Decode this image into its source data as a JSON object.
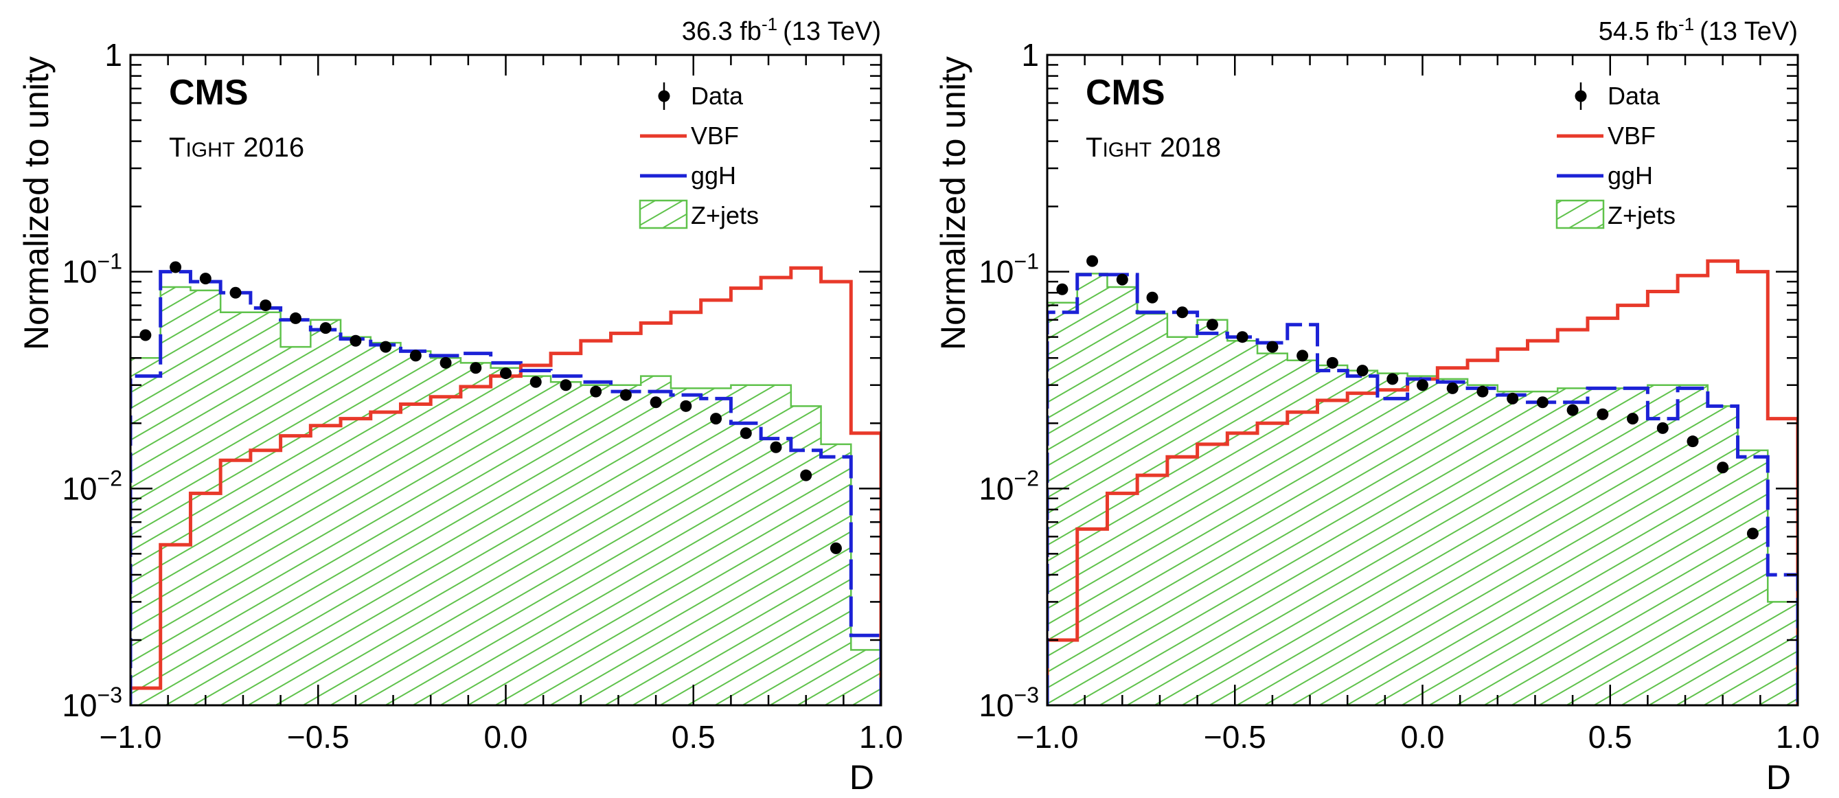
{
  "colors": {
    "vbf": "#e8392a",
    "ggh": "#1c22d6",
    "zjets": "#5fc24b",
    "data": "#000000"
  },
  "chart_data": [
    {
      "type": "histogram",
      "lumi_value": "36.3 fb",
      "lumi_exp": "-1",
      "energy": "(13 TeV)",
      "cms_label": "CMS",
      "category_cap": "T",
      "category_small": "IGHT",
      "category_year": "2016",
      "xlabel": "D",
      "ylabel": "Normalized to unity",
      "xlim": [
        -1.0,
        1.0
      ],
      "ylim": [
        0.001,
        1
      ],
      "yscale": "log",
      "xticks": [
        "−1.0",
        "−0.5",
        "0.0",
        "0.5",
        "1.0"
      ],
      "yticks": [
        {
          "base": "1",
          "exp": ""
        },
        {
          "base": "10",
          "exp": "−1"
        },
        {
          "base": "10",
          "exp": "−2"
        },
        {
          "base": "10",
          "exp": "−3"
        }
      ],
      "legend": [
        "Data",
        "VBF",
        "ggH",
        "Z+jets"
      ],
      "bin_edges": [
        -1.0,
        -0.92,
        -0.84,
        -0.76,
        -0.68,
        -0.6,
        -0.52,
        -0.44,
        -0.36,
        -0.28,
        -0.2,
        -0.12,
        -0.04,
        0.04,
        0.12,
        0.2,
        0.28,
        0.36,
        0.44,
        0.52,
        0.6,
        0.68,
        0.76,
        0.84,
        0.92,
        1.0
      ],
      "series": [
        {
          "name": "Z+jets",
          "values": [
            0.04,
            0.085,
            0.082,
            0.065,
            0.065,
            0.045,
            0.06,
            0.05,
            0.047,
            0.043,
            0.04,
            0.038,
            0.036,
            0.033,
            0.031,
            0.03,
            0.03,
            0.033,
            0.029,
            0.029,
            0.03,
            0.03,
            0.024,
            0.016,
            0.0018
          ]
        },
        {
          "name": "ggH",
          "values": [
            0.033,
            0.1,
            0.09,
            0.08,
            0.068,
            0.06,
            0.054,
            0.049,
            0.046,
            0.043,
            0.041,
            0.042,
            0.038,
            0.035,
            0.033,
            0.031,
            0.028,
            0.028,
            0.027,
            0.026,
            0.02,
            0.017,
            0.015,
            0.014,
            0.0021
          ]
        },
        {
          "name": "VBF",
          "values": [
            0.0012,
            0.0055,
            0.0095,
            0.0135,
            0.015,
            0.0175,
            0.0195,
            0.021,
            0.0225,
            0.0245,
            0.0265,
            0.0295,
            0.033,
            0.037,
            0.042,
            0.048,
            0.052,
            0.058,
            0.065,
            0.074,
            0.084,
            0.094,
            0.104,
            0.09,
            0.018
          ]
        }
      ],
      "data_points": {
        "x": [
          -0.96,
          -0.88,
          -0.8,
          -0.72,
          -0.64,
          -0.56,
          -0.48,
          -0.4,
          -0.32,
          -0.24,
          -0.16,
          -0.08,
          0.0,
          0.08,
          0.16,
          0.24,
          0.32,
          0.4,
          0.48,
          0.56,
          0.64,
          0.72,
          0.8,
          0.88
        ],
        "y": [
          0.051,
          0.105,
          0.093,
          0.08,
          0.07,
          0.061,
          0.055,
          0.048,
          0.045,
          0.041,
          0.038,
          0.036,
          0.034,
          0.031,
          0.03,
          0.028,
          0.027,
          0.025,
          0.024,
          0.021,
          0.018,
          0.0155,
          0.0115,
          0.0053
        ]
      }
    },
    {
      "type": "histogram",
      "lumi_value": "54.5 fb",
      "lumi_exp": "-1",
      "energy": "(13 TeV)",
      "cms_label": "CMS",
      "category_cap": "T",
      "category_small": "IGHT",
      "category_year": "2018",
      "xlabel": "D",
      "ylabel": "Normalized to unity",
      "xlim": [
        -1.0,
        1.0
      ],
      "ylim": [
        0.001,
        1
      ],
      "yscale": "log",
      "xticks": [
        "−1.0",
        "−0.5",
        "0.0",
        "0.5",
        "1.0"
      ],
      "yticks": [
        {
          "base": "1",
          "exp": ""
        },
        {
          "base": "10",
          "exp": "−1"
        },
        {
          "base": "10",
          "exp": "−2"
        },
        {
          "base": "10",
          "exp": "−3"
        }
      ],
      "legend": [
        "Data",
        "VBF",
        "ggH",
        "Z+jets"
      ],
      "bin_edges": [
        -1.0,
        -0.92,
        -0.84,
        -0.76,
        -0.68,
        -0.6,
        -0.52,
        -0.44,
        -0.36,
        -0.28,
        -0.2,
        -0.12,
        -0.04,
        0.04,
        0.12,
        0.2,
        0.28,
        0.36,
        0.44,
        0.52,
        0.6,
        0.68,
        0.76,
        0.84,
        0.92,
        1.0
      ],
      "series": [
        {
          "name": "Z+jets",
          "values": [
            0.072,
            0.098,
            0.085,
            0.064,
            0.05,
            0.06,
            0.048,
            0.042,
            0.039,
            0.037,
            0.035,
            0.034,
            0.033,
            0.032,
            0.03,
            0.028,
            0.028,
            0.029,
            0.029,
            0.029,
            0.03,
            0.03,
            0.024,
            0.015,
            0.003
          ]
        },
        {
          "name": "ggH",
          "values": [
            0.065,
            0.097,
            0.097,
            0.065,
            0.065,
            0.052,
            0.05,
            0.047,
            0.057,
            0.035,
            0.033,
            0.026,
            0.032,
            0.031,
            0.029,
            0.027,
            0.025,
            0.025,
            0.029,
            0.029,
            0.021,
            0.029,
            0.024,
            0.014,
            0.004
          ]
        },
        {
          "name": "VBF",
          "values": [
            0.002,
            0.0065,
            0.0095,
            0.0115,
            0.014,
            0.016,
            0.018,
            0.02,
            0.0225,
            0.0255,
            0.0275,
            0.0285,
            0.032,
            0.036,
            0.039,
            0.044,
            0.048,
            0.054,
            0.061,
            0.07,
            0.081,
            0.096,
            0.112,
            0.1,
            0.021
          ]
        }
      ],
      "data_points": {
        "x": [
          -0.96,
          -0.88,
          -0.8,
          -0.72,
          -0.64,
          -0.56,
          -0.48,
          -0.4,
          -0.32,
          -0.24,
          -0.16,
          -0.08,
          0.0,
          0.08,
          0.16,
          0.24,
          0.32,
          0.4,
          0.48,
          0.56,
          0.64,
          0.72,
          0.8,
          0.88
        ],
        "y": [
          0.083,
          0.112,
          0.092,
          0.076,
          0.065,
          0.057,
          0.05,
          0.045,
          0.041,
          0.038,
          0.035,
          0.032,
          0.03,
          0.029,
          0.028,
          0.026,
          0.025,
          0.023,
          0.022,
          0.021,
          0.019,
          0.0165,
          0.0125,
          0.0062
        ]
      }
    }
  ]
}
